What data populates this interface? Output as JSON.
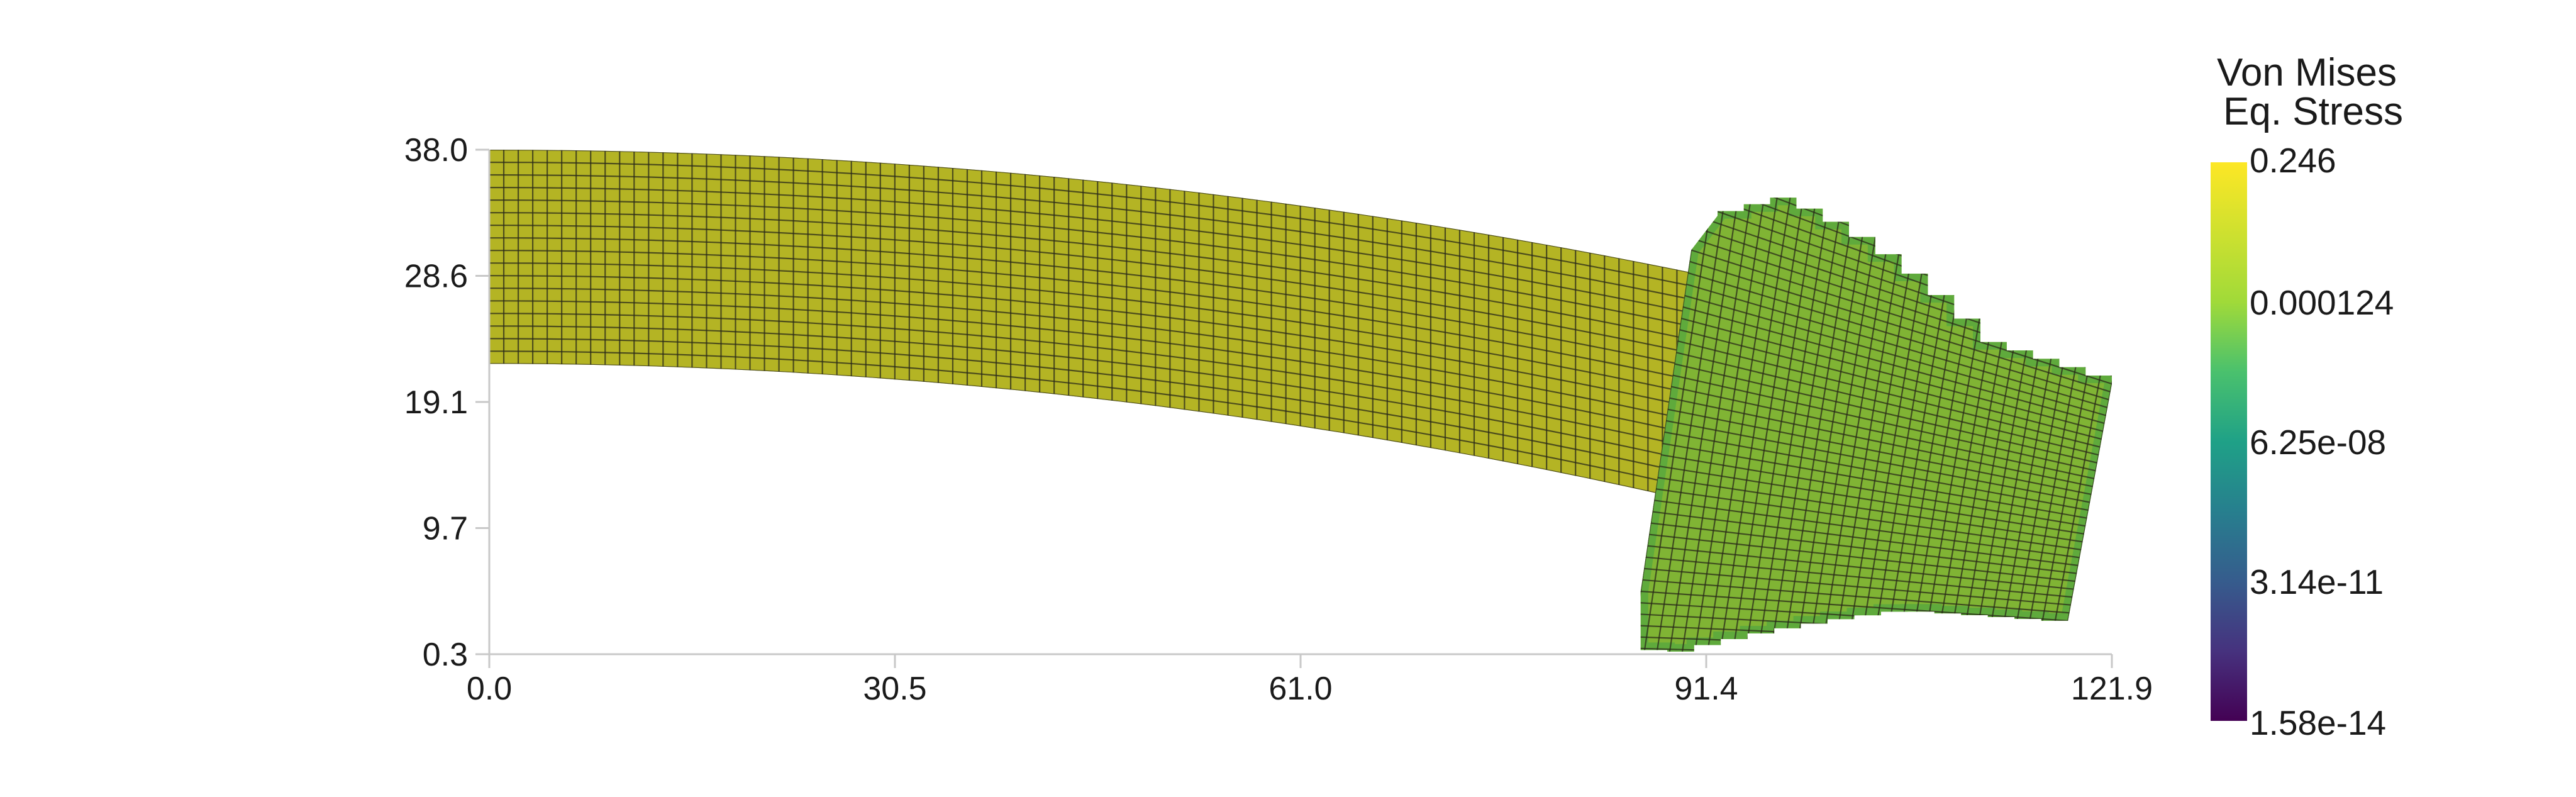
{
  "chart_data": {
    "type": "heatmap",
    "title": "",
    "xlabel": "",
    "ylabel": "",
    "xlim": [
      0.0,
      121.9
    ],
    "ylim": [
      0.3,
      38.0
    ],
    "x_ticks": [
      "0.0",
      "30.5",
      "61.0",
      "91.4",
      "121.9"
    ],
    "y_ticks": [
      "0.3",
      "9.7",
      "19.1",
      "28.6",
      "38.0"
    ],
    "grid": false,
    "colorbar": {
      "title_lines": [
        "Von Mises",
        "Eq. Stress"
      ],
      "colormap": "viridis",
      "scale": "log",
      "range": [
        1.58e-14,
        0.246
      ],
      "tick_labels": [
        "0.246",
        "0.000124",
        "6.25e-08",
        "3.14e-11",
        "1.58e-14"
      ]
    },
    "mesh": {
      "description": "deformed structured quadrilateral mesh colored by von Mises stress",
      "beam": {
        "x_range": [
          0.0,
          91.4
        ],
        "left_y_range": [
          22.0,
          38.0
        ],
        "right_y_range": [
          11.5,
          28.6
        ],
        "value": 0.05
      },
      "block": {
        "top_left": [
          90.3,
          30.5
        ],
        "top_right": [
          121.9,
          20.5
        ],
        "bottom_left": [
          86.5,
          5.0
        ],
        "bottom_right": [
          118.6,
          2.8
        ],
        "top_peak": [
          96.0,
          34.5
        ],
        "bottom_peak": [
          90.0,
          0.3
        ],
        "value": 0.01
      }
    }
  },
  "colors": {
    "beam_fill": "#b4b424",
    "block_fill": "#80b434",
    "block_edge_fill": "#5faa3c",
    "mesh_line": "#2a2a1a",
    "axis": "#c8c8c8",
    "text": "#1a1a1a"
  }
}
